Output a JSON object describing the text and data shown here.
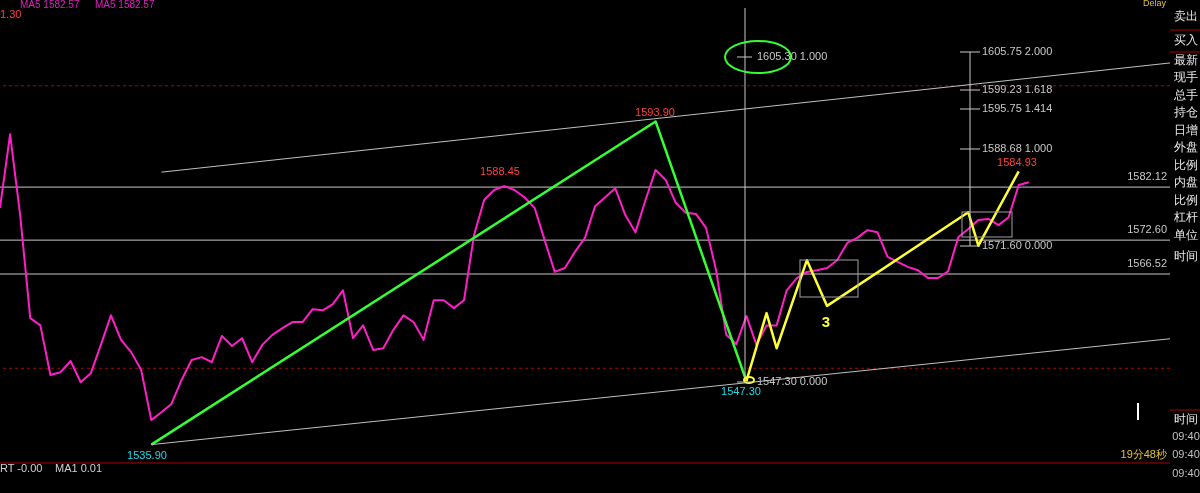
{
  "chart_data": {
    "type": "line",
    "categories": [
      null,
      null,
      null,
      null,
      null,
      null,
      null,
      null,
      null,
      null,
      null,
      null,
      null,
      null,
      null,
      null,
      null,
      null,
      null,
      null,
      null,
      null,
      null,
      null,
      null,
      null,
      null,
      null,
      null,
      null,
      null,
      null,
      null,
      null,
      null,
      null,
      null,
      null,
      null,
      null,
      null,
      null,
      null,
      null,
      null,
      null,
      null,
      null,
      null,
      null,
      null,
      null,
      null,
      null,
      null,
      null,
      null,
      null,
      null,
      null,
      null,
      null,
      null,
      null,
      null,
      null,
      null,
      null,
      null,
      null,
      null,
      null,
      null,
      null,
      null,
      null,
      null,
      null,
      null,
      null,
      null,
      null,
      null,
      null,
      null,
      null,
      null,
      null,
      null,
      null,
      null,
      null,
      null,
      null,
      null,
      null,
      null,
      null,
      null,
      null,
      null,
      null,
      null,
      null,
      null,
      null,
      null,
      null,
      null,
      null,
      null,
      null,
      null,
      null,
      null,
      null,
      null
    ],
    "series": [
      {
        "color": "#ff1fc8",
        "values": [
          1578.4,
          1591.6,
          1577.1,
          1558.6,
          1557.3,
          1548.4,
          1548.9,
          1550.9,
          1547.1,
          1548.7,
          1553.8,
          1559.1,
          1554.7,
          1552.5,
          1549.3,
          1540.3,
          1541.7,
          1543.2,
          1547.5,
          1551.1,
          1551.6,
          1550.7,
          1555.4,
          1553.6,
          1555.0,
          1550.7,
          1553.8,
          1555.6,
          1556.8,
          1557.9,
          1557.9,
          1560.2,
          1560.0,
          1561.1,
          1563.6,
          1555.0,
          1557.3,
          1552.9,
          1553.2,
          1556.5,
          1559.1,
          1557.9,
          1554.7,
          1561.8,
          1561.8,
          1560.4,
          1561.8,
          1573.5,
          1579.8,
          1581.6,
          1582.3,
          1581.6,
          1580.3,
          1578.4,
          1572.6,
          1566.9,
          1567.6,
          1570.5,
          1573.0,
          1578.7,
          1580.3,
          1581.9,
          1577.1,
          1574.0,
          1579.8,
          1585.2,
          1583.4,
          1579.3,
          1577.5,
          1577.3,
          1574.8,
          1567.2,
          1555.6,
          1553.9,
          1559.0,
          1553.8,
          1557.3,
          1557.3,
          1563.6,
          1565.8,
          1566.9,
          1567.2,
          1567.6,
          1569.0,
          1572.1,
          1573.0,
          1574.4,
          1574.0,
          1569.6,
          1568.7,
          1567.8,
          1567.2,
          1565.8,
          1565.8,
          1567.0,
          1573.1,
          1574.6,
          1576.2,
          1576.4,
          1575.3,
          1576.7,
          1582.5,
          1583.0,
          null,
          null,
          null,
          null,
          null,
          null,
          null,
          null,
          null,
          null,
          null,
          null,
          null,
          null
        ]
      },
      {
        "color": "#33ff33",
        "values": [
          null,
          null,
          null,
          null,
          null,
          null,
          null,
          null,
          null,
          null,
          null,
          null,
          null,
          null,
          null,
          1535.9,
          null,
          null,
          null,
          null,
          null,
          null,
          null,
          null,
          null,
          null,
          null,
          null,
          null,
          null,
          null,
          null,
          null,
          null,
          null,
          null,
          null,
          null,
          null,
          null,
          null,
          null,
          null,
          null,
          null,
          null,
          null,
          null,
          null,
          null,
          null,
          null,
          null,
          null,
          null,
          null,
          null,
          null,
          null,
          null,
          null,
          null,
          null,
          null,
          null,
          1593.9,
          null,
          null,
          null,
          null,
          null,
          null,
          null,
          null,
          1547.3,
          null,
          null,
          null,
          null,
          null,
          null,
          null,
          null,
          null,
          null,
          null,
          null,
          null,
          null,
          null,
          null,
          null,
          null,
          null,
          null,
          null,
          null,
          null,
          null,
          null,
          null,
          null,
          null,
          null,
          null,
          null,
          null,
          null,
          null,
          null,
          null,
          null,
          null,
          null,
          null,
          null,
          null
        ]
      },
      {
        "color": "#ffff33",
        "values": [
          null,
          null,
          null,
          null,
          null,
          null,
          null,
          null,
          null,
          null,
          null,
          null,
          null,
          null,
          null,
          null,
          null,
          null,
          null,
          null,
          null,
          null,
          null,
          null,
          null,
          null,
          null,
          null,
          null,
          null,
          null,
          null,
          null,
          null,
          null,
          null,
          null,
          null,
          null,
          null,
          null,
          null,
          null,
          null,
          null,
          null,
          null,
          null,
          null,
          null,
          null,
          null,
          null,
          null,
          null,
          null,
          null,
          null,
          null,
          null,
          null,
          null,
          null,
          null,
          null,
          null,
          null,
          null,
          null,
          null,
          null,
          null,
          null,
          null,
          1547.3,
          null,
          1559.5,
          1553.2,
          null,
          null,
          1569.0,
          null,
          1560.8,
          null,
          null,
          null,
          null,
          null,
          null,
          null,
          null,
          null,
          null,
          null,
          null,
          null,
          1577.6,
          1571.6,
          null,
          null,
          null,
          1584.93,
          null,
          null,
          null,
          null,
          null,
          null,
          null,
          null,
          null,
          null,
          null,
          null,
          null,
          null,
          null
        ]
      },
      {
        "color": "#c0c0c0",
        "values": [
          null,
          null,
          null,
          null,
          null,
          null,
          null,
          null,
          null,
          null,
          null,
          null,
          null,
          null,
          null,
          null,
          1584.8,
          null,
          null,
          null,
          null,
          null,
          null,
          null,
          null,
          null,
          null,
          null,
          null,
          null,
          null,
          null,
          null,
          null,
          null,
          null,
          null,
          null,
          null,
          null,
          null,
          null,
          null,
          null,
          null,
          null,
          null,
          null,
          null,
          null,
          null,
          null,
          null,
          null,
          null,
          null,
          null,
          null,
          null,
          null,
          null,
          null,
          null,
          null,
          null,
          null,
          null,
          null,
          null,
          null,
          null,
          null,
          null,
          null,
          null,
          null,
          null,
          null,
          null,
          null,
          null,
          null,
          null,
          null,
          null,
          null,
          null,
          null,
          null,
          null,
          null,
          null,
          null,
          null,
          null,
          null,
          null,
          null,
          null,
          null,
          null,
          null,
          null,
          null,
          null,
          null,
          null,
          null,
          null,
          null,
          null,
          null,
          null,
          null,
          null,
          null,
          1604.4
        ]
      },
      {
        "color": "#c0c0c0",
        "values": [
          null,
          null,
          null,
          null,
          null,
          null,
          null,
          null,
          null,
          null,
          null,
          null,
          null,
          null,
          null,
          1535.9,
          null,
          null,
          null,
          null,
          null,
          null,
          null,
          null,
          null,
          null,
          null,
          null,
          null,
          null,
          null,
          null,
          null,
          null,
          null,
          null,
          null,
          null,
          null,
          null,
          null,
          null,
          null,
          null,
          null,
          null,
          null,
          null,
          null,
          null,
          null,
          null,
          null,
          null,
          null,
          null,
          null,
          null,
          null,
          null,
          null,
          null,
          null,
          null,
          null,
          null,
          null,
          null,
          null,
          null,
          null,
          null,
          null,
          null,
          null,
          null,
          null,
          null,
          null,
          null,
          null,
          null,
          null,
          null,
          null,
          null,
          null,
          null,
          null,
          null,
          null,
          null,
          null,
          null,
          null,
          null,
          null,
          null,
          null,
          null,
          null,
          null,
          null,
          null,
          null,
          null,
          null,
          null,
          null,
          null,
          null,
          null,
          null,
          null,
          null,
          null,
          1554.9
        ]
      }
    ],
    "ylim": [
      1532.6,
      1615.7
    ],
    "yticks": [
      1566.52,
      {
        "value": 1572.6,
        "label": "1572.60"
      },
      1582.12
    ],
    "tick_labels": "y",
    "marker": "none",
    "line_style": "solid",
    "ref_lines": [
      {
        "axis": "y",
        "value": 1582.12,
        "color": "#c8c8c8"
      },
      {
        "axis": "y",
        "value": 1572.6,
        "color": "#c8c8c8"
      },
      {
        "axis": "y",
        "value": 1566.52,
        "color": "#c8c8c8"
      },
      {
        "axis": "y",
        "value": 1600.3,
        "color": "#b00000",
        "line_style": "dashed"
      },
      {
        "axis": "y",
        "value": 1549.6,
        "color": "#b00000",
        "line_style": "dashed"
      }
    ],
    "annotations": [
      "1605.30 1.000",
      "1547.30 0.000",
      "1605.75 2.000",
      "1599.23 1.618",
      "1595.75 1.414",
      "1588.68 1.000",
      "1571.60 0.000",
      {
        "text": "1593.90",
        "y": 1593.9
      },
      "1588.45",
      {
        "text": "1535.90",
        "y": 1535.9
      },
      {
        "text": "1547.30",
        "y": 1547.3
      },
      {
        "text": "1584.93",
        "y": 1584.93
      },
      "3",
      "MA5 1582.57",
      "MA5 1582.57",
      "1.30",
      "RT -0.00",
      "MA1 0.01",
      "Delay",
      "19分48秒",
      "卖出",
      "买入",
      "最新",
      "现手",
      "总手",
      "持仓",
      "日增",
      "外盘",
      "比例",
      "内盘",
      "比例",
      "杠杆",
      "单位",
      "时间",
      "时间",
      "09:40",
      "09:40",
      "09:40"
    ]
  }
}
